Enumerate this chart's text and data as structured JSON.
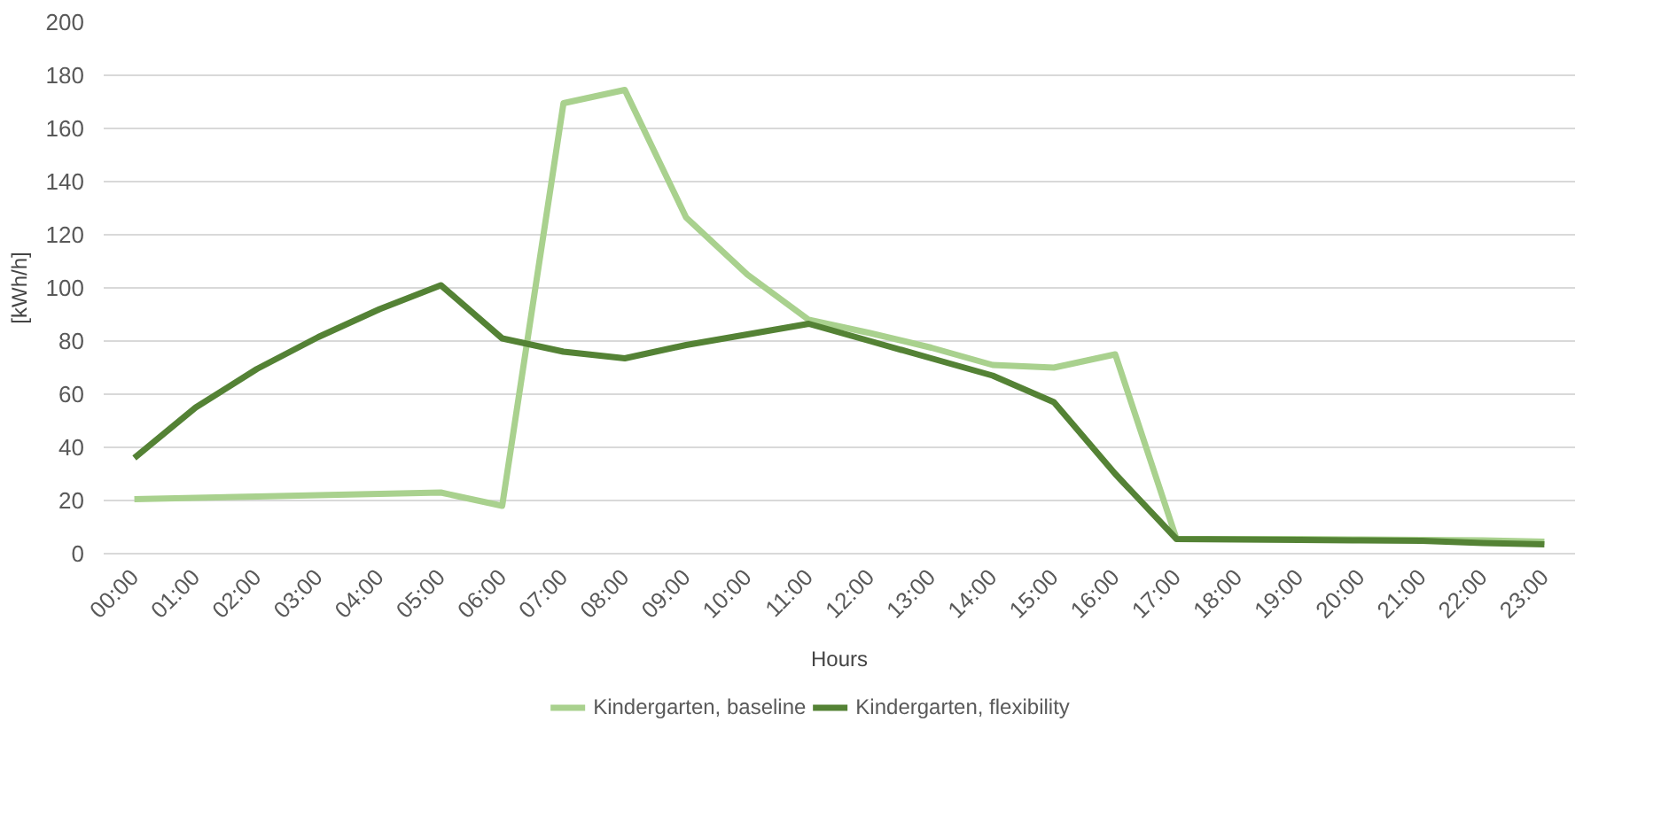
{
  "chart_data": {
    "type": "line",
    "xlabel": "Hours",
    "ylabel": "[kWh/h]",
    "categories": [
      "00:00",
      "01:00",
      "02:00",
      "03:00",
      "04:00",
      "05:00",
      "06:00",
      "07:00",
      "08:00",
      "09:00",
      "10:00",
      "11:00",
      "12:00",
      "13:00",
      "14:00",
      "15:00",
      "16:00",
      "17:00",
      "18:00",
      "19:00",
      "20:00",
      "21:00",
      "22:00",
      "23:00"
    ],
    "series": [
      {
        "name": "Kindergarten, baseline",
        "color": "#a9d18e",
        "values": [
          20.5,
          21,
          21.5,
          22,
          22.5,
          23,
          18,
          169.5,
          174.5,
          126.5,
          105,
          88,
          83,
          77.5,
          71,
          70,
          75,
          5.5,
          5.5,
          5.5,
          5.3,
          5.2,
          5,
          4.5
        ]
      },
      {
        "name": "Kindergarten, flexibility",
        "color": "#548235",
        "values": [
          36,
          55,
          69.5,
          81.5,
          92,
          101,
          81,
          76,
          73.5,
          78.5,
          82.5,
          86.5,
          80,
          73.5,
          67,
          57,
          30,
          5.5,
          5.3,
          5.2,
          5,
          4.8,
          4,
          3.5
        ]
      }
    ],
    "ylim": [
      0,
      200
    ],
    "yticks": [
      0,
      20,
      40,
      60,
      80,
      100,
      120,
      140,
      160,
      180,
      200
    ],
    "grid": "y",
    "legend": "bottom",
    "marker": "none",
    "line_style": "solid"
  }
}
